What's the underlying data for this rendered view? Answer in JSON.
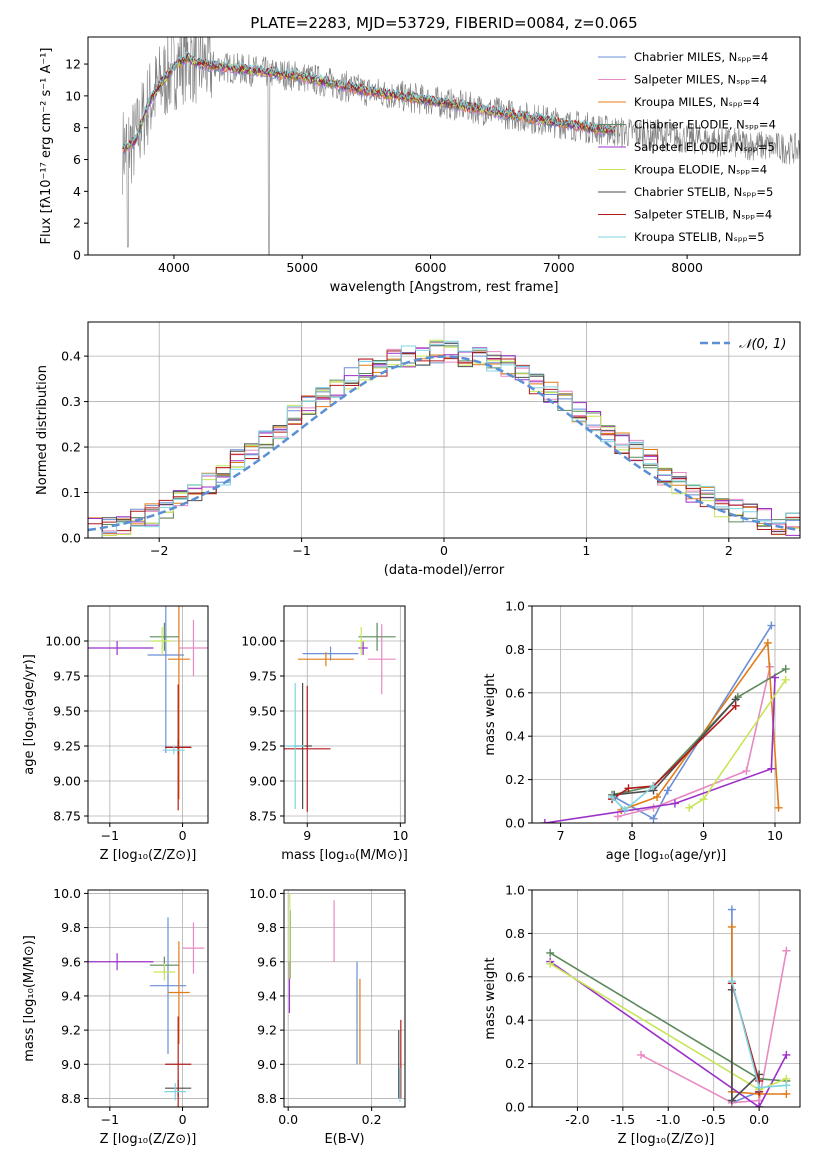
{
  "colors": [
    "#6a8fd8",
    "#e78ac3",
    "#e07b17",
    "#5c8a5c",
    "#9b30c8",
    "#c7e65a",
    "#4d4d4d",
    "#b31b1b",
    "#7fd4e0"
  ],
  "chart_data": [
    {
      "type": "line",
      "title": "PLATE=2283, MJD=53729, FIBERID=0084, z=0.065",
      "xlabel": "wavelength [Angstrom, rest frame]",
      "ylabel": "Flux [fλ10⁻¹⁷ erg cm⁻² s⁻¹ A⁻¹]",
      "xlim": [
        3330,
        8880
      ],
      "ylim": [
        0,
        13.7
      ],
      "xticks": [
        4000,
        5000,
        6000,
        7000,
        8000
      ],
      "yticks": [
        0,
        2,
        4,
        6,
        8,
        10,
        12
      ],
      "legend_position": "top-right",
      "legend": [
        "Chabrier MILES, Nₛₚₚ=4",
        "Salpeter MILES, Nₛₚₚ=4",
        "Kroupa MILES, Nₛₚₚ=4",
        "Chabrier ELODIE, Nₛₚₚ=4",
        "Salpeter ELODIE, Nₛₚₚ=5",
        "Kroupa ELODIE, Nₛₚₚ=4",
        "Chabrier STELIB, Nₛₚₚ=5",
        "Salpeter STELIB, Nₛₚₚ=4",
        "Kroupa STELIB, Nₛₚₚ=5"
      ],
      "model_continuum": {
        "x": [
          3600,
          3700,
          3800,
          3900,
          4000,
          4100,
          4200,
          4300,
          4500,
          5000,
          5500,
          6000,
          6500,
          7000,
          7400
        ],
        "y": [
          6.6,
          7.2,
          9.5,
          10.8,
          11.8,
          12.4,
          12.0,
          11.9,
          11.7,
          11.2,
          10.3,
          9.7,
          9.0,
          8.3,
          7.8
        ]
      }
    },
    {
      "type": "line",
      "xlabel": "(data-model)/error",
      "ylabel": "Normed distribution",
      "xlim": [
        -2.5,
        2.5
      ],
      "ylim": [
        0,
        0.475
      ],
      "xticks": [
        -2,
        -1,
        0,
        1,
        2
      ],
      "yticks": [
        0.0,
        0.1,
        0.2,
        0.3,
        0.4
      ],
      "legend": [
        "𝒩(0, 1)"
      ],
      "legend_position": "top-right",
      "gaussian": {
        "mean": 0,
        "sigma": 1
      },
      "histogram_bin_width": 0.1,
      "histogram": [
        0.02,
        0.03,
        0.03,
        0.04,
        0.05,
        0.06,
        0.08,
        0.1,
        0.12,
        0.14,
        0.17,
        0.19,
        0.22,
        0.24,
        0.27,
        0.29,
        0.31,
        0.33,
        0.35,
        0.37,
        0.38,
        0.39,
        0.4,
        0.4,
        0.41,
        0.41,
        0.4,
        0.4,
        0.39,
        0.38,
        0.36,
        0.34,
        0.32,
        0.3,
        0.28,
        0.26,
        0.23,
        0.21,
        0.19,
        0.17,
        0.14,
        0.12,
        0.1,
        0.09,
        0.07,
        0.06,
        0.05,
        0.04,
        0.03,
        0.03
      ]
    },
    {
      "type": "scatter",
      "xlabel": "Z [log₁₀(Z/Z⊙)]",
      "ylabel": "age  [log₁₀(age/yr)]",
      "xlim": [
        -1.3,
        0.35
      ],
      "ylim": [
        8.7,
        10.25
      ],
      "xticks": [
        -1,
        0
      ],
      "yticks": [
        8.75,
        9.0,
        9.25,
        9.5,
        9.75,
        10.0
      ],
      "points": [
        {
          "x": -0.23,
          "y": 9.9,
          "xerr": 0.25,
          "yerr": 0.7
        },
        {
          "x": 0.15,
          "y": 9.95,
          "xerr": 0.2,
          "yerr": 0.2
        },
        {
          "x": -0.05,
          "y": 9.87,
          "xerr": 0.15,
          "yerr": 1.0
        },
        {
          "x": -0.25,
          "y": 10.03,
          "xerr": 0.2,
          "yerr": 0.1
        },
        {
          "x": -0.9,
          "y": 9.95,
          "xerr": 0.5,
          "yerr": 0.05
        },
        {
          "x": -0.28,
          "y": 10.0,
          "xerr": 0.15,
          "yerr": 0.1
        },
        {
          "x": -0.06,
          "y": 9.24,
          "xerr": 0.18,
          "yerr": 0.05
        },
        {
          "x": -0.06,
          "y": 9.24,
          "xerr": 0.18,
          "yerr": 0.45
        },
        {
          "x": -0.12,
          "y": 9.22,
          "xerr": 0.15,
          "yerr": 0.03
        }
      ]
    },
    {
      "type": "scatter",
      "xlabel": "mass [log₁₀(M/M⊙)]",
      "xlim": [
        8.75,
        10.05
      ],
      "ylim": [
        8.7,
        10.25
      ],
      "xticks": [
        9,
        10
      ],
      "yticks": [
        8.75,
        9.0,
        9.25,
        9.5,
        9.75,
        10.0
      ],
      "points": [
        {
          "x": 9.25,
          "y": 9.91,
          "xerr": 0.3,
          "yerr": 0.05
        },
        {
          "x": 9.8,
          "y": 9.87,
          "xerr": 0.15,
          "yerr": 0.25
        },
        {
          "x": 9.2,
          "y": 9.87,
          "xerr": 0.3,
          "yerr": 0.05
        },
        {
          "x": 9.75,
          "y": 10.03,
          "xerr": 0.2,
          "yerr": 0.1
        },
        {
          "x": 9.6,
          "y": 9.95,
          "xerr": 0.05,
          "yerr": 0.05
        },
        {
          "x": 9.58,
          "y": 10.0,
          "xerr": 0.05,
          "yerr": 0.1
        },
        {
          "x": 8.95,
          "y": 9.25,
          "xerr": 0.1,
          "yerr": 0.45
        },
        {
          "x": 9.0,
          "y": 9.23,
          "xerr": 0.25,
          "yerr": 0.45
        },
        {
          "x": 8.87,
          "y": 9.25,
          "xerr": 0.1,
          "yerr": 0.45
        }
      ]
    },
    {
      "type": "line",
      "xlabel": "age  [log₁₀(age/yr)]",
      "ylabel": "mass weight",
      "xlim": [
        6.6,
        10.35
      ],
      "ylim": [
        0,
        1.0
      ],
      "xticks": [
        7,
        8,
        9,
        10
      ],
      "yticks": [
        0.0,
        0.2,
        0.4,
        0.6,
        0.8,
        1.0
      ],
      "series": [
        {
          "x": [
            7.75,
            8.3,
            8.5,
            9.95
          ],
          "y": [
            0.12,
            0.02,
            0.15,
            0.91
          ]
        },
        {
          "x": [
            7.8,
            8.3,
            9.6,
            9.93
          ],
          "y": [
            0.03,
            0.07,
            0.24,
            0.72
          ]
        },
        {
          "x": [
            7.85,
            8.35,
            9.9,
            10.05
          ],
          "y": [
            0.06,
            0.12,
            0.83,
            0.07
          ]
        },
        {
          "x": [
            7.72,
            8.3,
            9.48,
            10.15
          ],
          "y": [
            0.13,
            0.17,
            0.58,
            0.71
          ]
        },
        {
          "x": [
            6.78,
            8.6,
            9.95,
            10.0
          ],
          "y": [
            0.0,
            0.09,
            0.25,
            0.67
          ]
        },
        {
          "x": [
            8.8,
            9.0,
            10.15
          ],
          "y": [
            0.07,
            0.11,
            0.66
          ]
        },
        {
          "x": [
            7.75,
            8.3,
            9.45
          ],
          "y": [
            0.13,
            0.15,
            0.57
          ]
        },
        {
          "x": [
            7.72,
            7.95,
            8.3,
            9.45
          ],
          "y": [
            0.11,
            0.16,
            0.17,
            0.54
          ]
        },
        {
          "x": [
            7.72,
            7.9,
            8.3
          ],
          "y": [
            0.12,
            0.06,
            0.17
          ]
        }
      ]
    },
    {
      "type": "scatter",
      "xlabel": "Z [log₁₀(Z/Z⊙)]",
      "ylabel": "mass [log₁₀(M/M⊙)]",
      "xlim": [
        -1.3,
        0.35
      ],
      "ylim": [
        8.75,
        10.02
      ],
      "xticks": [
        -1,
        0
      ],
      "yticks": [
        8.8,
        9.0,
        9.2,
        9.4,
        9.6,
        9.8,
        10.0
      ],
      "points": [
        {
          "x": -0.2,
          "y": 9.46,
          "xerr": 0.25,
          "yerr": 0.4
        },
        {
          "x": 0.15,
          "y": 9.68,
          "xerr": 0.15,
          "yerr": 0.15
        },
        {
          "x": -0.05,
          "y": 9.42,
          "xerr": 0.15,
          "yerr": 0.3
        },
        {
          "x": -0.25,
          "y": 9.58,
          "xerr": 0.2,
          "yerr": 0.05
        },
        {
          "x": -0.9,
          "y": 9.6,
          "xerr": 0.5,
          "yerr": 0.05
        },
        {
          "x": -0.25,
          "y": 9.54,
          "xerr": 0.15,
          "yerr": 0.05
        },
        {
          "x": -0.06,
          "y": 8.86,
          "xerr": 0.18,
          "yerr": 0.05
        },
        {
          "x": -0.06,
          "y": 9.0,
          "xerr": 0.18,
          "yerr": 0.28
        },
        {
          "x": -0.1,
          "y": 8.84,
          "xerr": 0.15,
          "yerr": 0.05
        }
      ]
    },
    {
      "type": "scatter",
      "xlabel": "E(B-V)",
      "xlim": [
        -0.01,
        0.28
      ],
      "ylim": [
        8.75,
        10.02
      ],
      "xticks": [
        0.0,
        0.2
      ],
      "yticks": [
        8.8,
        9.0,
        9.2,
        9.4,
        9.6,
        9.8,
        10.0
      ],
      "points": [
        {
          "x": 0.165,
          "y": 9.3,
          "xerr": 0,
          "yerr": 0.3
        },
        {
          "x": 0.11,
          "y": 9.78,
          "xerr": 0,
          "yerr": 0.18
        },
        {
          "x": 0.172,
          "y": 9.25,
          "xerr": 0,
          "yerr": 0.25
        },
        {
          "x": 0.005,
          "y": 9.7,
          "xerr": 0,
          "yerr": 0.2
        },
        {
          "x": 0.003,
          "y": 9.45,
          "xerr": 0,
          "yerr": 0.15
        },
        {
          "x": 0.004,
          "y": 9.75,
          "xerr": 0,
          "yerr": 0.25
        },
        {
          "x": 0.265,
          "y": 9.0,
          "xerr": 0,
          "yerr": 0.2
        },
        {
          "x": 0.27,
          "y": 9.03,
          "xerr": 0,
          "yerr": 0.23
        },
        {
          "x": 0.268,
          "y": 8.88,
          "xerr": 0,
          "yerr": 0.1
        }
      ]
    },
    {
      "type": "line",
      "xlabel": "Z [log₁₀(Z/Z⊙)]",
      "ylabel": "mass weight",
      "xlim": [
        -2.5,
        0.45
      ],
      "ylim": [
        0,
        1.0
      ],
      "xticks": [
        -2.0,
        -1.5,
        -1.0,
        -0.5,
        0.0
      ],
      "yticks": [
        0.0,
        0.2,
        0.4,
        0.6,
        0.8,
        1.0
      ],
      "series": [
        {
          "x": [
            -0.3,
            -0.3,
            0.0,
            0.0
          ],
          "y": [
            0.91,
            0.02,
            0.07,
            0.0
          ]
        },
        {
          "x": [
            -1.3,
            -0.3,
            0.0,
            0.3
          ],
          "y": [
            0.24,
            0.02,
            0.03,
            0.72
          ]
        },
        {
          "x": [
            -0.3,
            -0.3,
            0.0,
            0.3
          ],
          "y": [
            0.83,
            0.07,
            0.06,
            0.06
          ]
        },
        {
          "x": [
            -2.3,
            0.0,
            0.3
          ],
          "y": [
            0.71,
            0.13,
            0.12
          ]
        },
        {
          "x": [
            -2.3,
            0.0,
            0.3
          ],
          "y": [
            0.67,
            0.0,
            0.24
          ]
        },
        {
          "x": [
            -2.3,
            0.0,
            0.3
          ],
          "y": [
            0.66,
            0.08,
            0.13
          ]
        },
        {
          "x": [
            -0.3,
            -0.3,
            0.0
          ],
          "y": [
            0.54,
            0.03,
            0.15
          ]
        },
        {
          "x": [
            -0.3,
            0.0,
            0.0
          ],
          "y": [
            0.57,
            0.12,
            0.07
          ]
        },
        {
          "x": [
            -0.3,
            0.0,
            0.3
          ],
          "y": [
            0.58,
            0.09,
            0.1
          ]
        }
      ]
    }
  ]
}
